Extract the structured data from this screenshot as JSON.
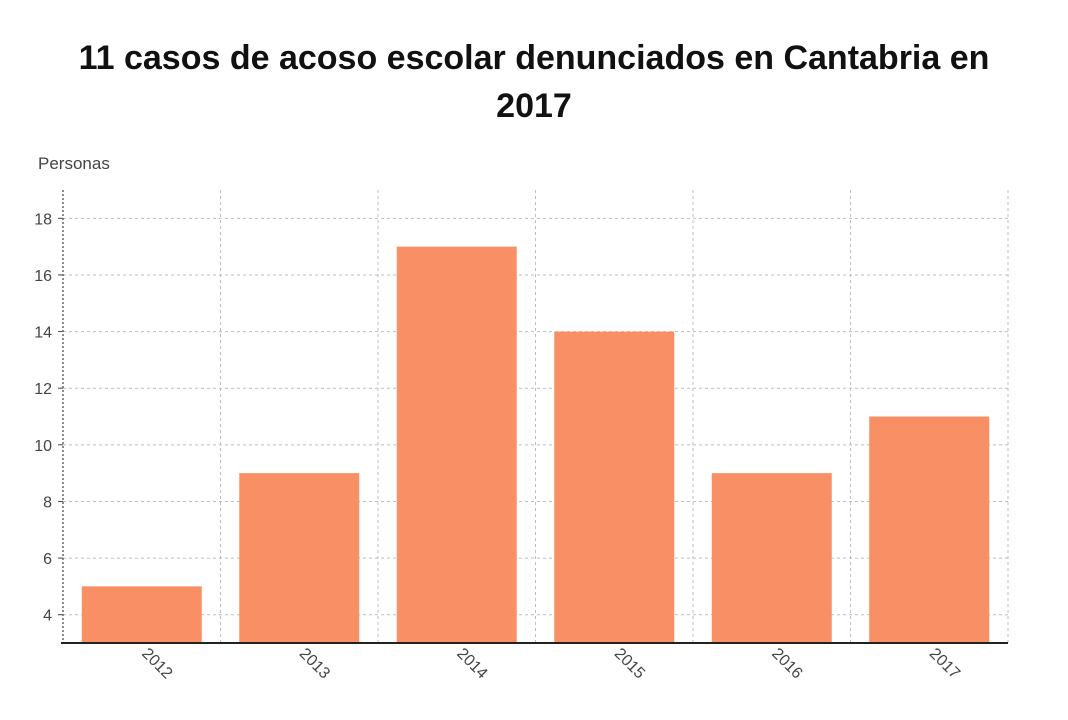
{
  "chart_data": {
    "type": "bar",
    "title": "11 casos de acoso escolar denunciados en Cantabria en 2017",
    "ylabel": "Personas",
    "xlabel": "",
    "categories": [
      "2012",
      "2013",
      "2014",
      "2015",
      "2016",
      "2017"
    ],
    "values": [
      5,
      9,
      17,
      14,
      9,
      11
    ],
    "ylim": [
      3,
      19
    ],
    "yticks": [
      4,
      6,
      8,
      10,
      12,
      14,
      16,
      18
    ],
    "grid": true,
    "colors": {
      "bar": "#f98f64",
      "grid": "#bdbdbd",
      "axis": "#222222"
    }
  }
}
